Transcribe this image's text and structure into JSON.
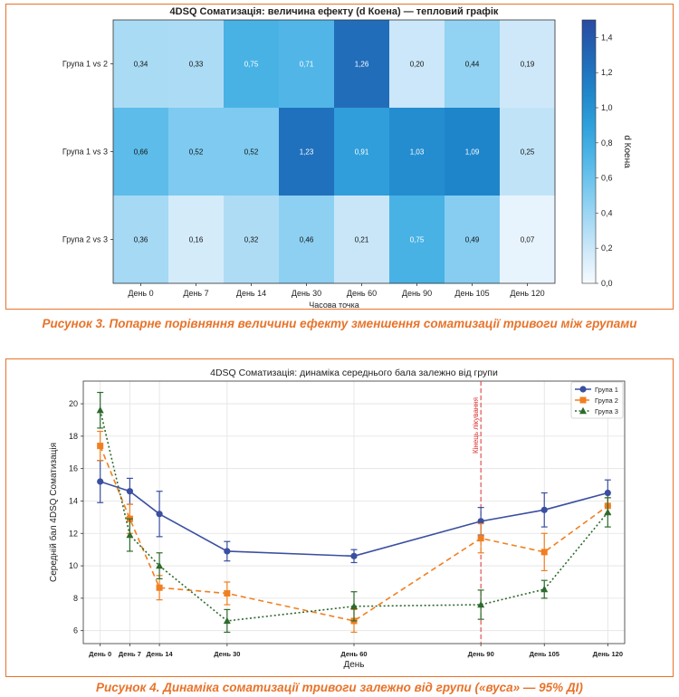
{
  "captions": {
    "fig3": "Рисунок 3. Попарне порівняння величини ефекту зменшення соматизації тривоги між групами",
    "fig4": "Рисунок 4. Динаміка соматизації тривоги залежно від групи («вуса» — 95% ДІ)"
  },
  "chart_data": [
    {
      "type": "heatmap",
      "title": "4DSQ Соматизація: величина ефекту (d Коена) — тепловий графік",
      "xlabel": "Часова точка",
      "ylabel": "",
      "colorbar_label": "d Коена",
      "colorbar_ticks": [
        "0,0",
        "0,2",
        "0,4",
        "0,6",
        "0,8",
        "1,0",
        "1,2",
        "1,4"
      ],
      "vmin": 0,
      "vmax": 1.5,
      "x_categories": [
        "День 0",
        "День 7",
        "День 14",
        "День 30",
        "День 60",
        "День 90",
        "День 105",
        "День 120"
      ],
      "y_categories": [
        "Група 1 vs 2",
        "Група 1 vs 3",
        "Група 2 vs 3"
      ],
      "values": [
        [
          0.34,
          0.33,
          0.75,
          0.71,
          1.26,
          0.2,
          0.44,
          0.19
        ],
        [
          0.66,
          0.52,
          0.52,
          1.23,
          0.91,
          1.03,
          1.09,
          0.25
        ],
        [
          0.36,
          0.16,
          0.32,
          0.46,
          0.21,
          0.75,
          0.49,
          0.07
        ]
      ],
      "value_labels": [
        [
          "0,34",
          "0,33",
          "0,75",
          "0,71",
          "1,26",
          "0,20",
          "0,44",
          "0,19"
        ],
        [
          "0,66",
          "0,52",
          "0,52",
          "1,23",
          "0,91",
          "1,03",
          "1,09",
          "0,25"
        ],
        [
          "0,36",
          "0,16",
          "0,32",
          "0,46",
          "0,21",
          "0,75",
          "0,49",
          "0,07"
        ]
      ]
    },
    {
      "type": "line",
      "title": "4DSQ Соматизація: динаміка середнього бала залежно від групи",
      "xlabel": "День",
      "ylabel": "Середній бал 4DSQ Соматизація",
      "x": [
        0,
        7,
        14,
        30,
        60,
        90,
        105,
        120
      ],
      "x_tick_labels": [
        "День 0",
        "День 7",
        "День 14",
        "День 30",
        "День 60",
        "День 90",
        "День 105",
        "День 120"
      ],
      "ylim": [
        5.2,
        21.4
      ],
      "y_ticks": [
        6,
        8,
        10,
        12,
        14,
        16,
        18,
        20
      ],
      "grid": true,
      "legend_position": "top-right",
      "annotation": {
        "x": 90,
        "label": "Кінець лікування",
        "color": "#e03030"
      },
      "series": [
        {
          "name": "Група 1",
          "color": "#3a4fa0",
          "marker": "circle",
          "line": "solid",
          "values": [
            15.2,
            14.6,
            13.2,
            10.9,
            10.6,
            12.75,
            13.45,
            14.5
          ],
          "ci_low": [
            13.9,
            13.8,
            11.8,
            10.3,
            10.2,
            11.9,
            12.4,
            13.7
          ],
          "ci_high": [
            16.5,
            15.4,
            14.6,
            11.5,
            11.0,
            13.6,
            14.5,
            15.3
          ]
        },
        {
          "name": "Група 2",
          "color": "#f07f20",
          "marker": "square",
          "line": "dashed",
          "values": [
            17.4,
            12.9,
            8.65,
            8.3,
            6.6,
            11.7,
            10.85,
            13.7
          ],
          "ci_low": [
            16.5,
            12.0,
            7.9,
            7.6,
            5.9,
            10.8,
            9.7,
            13.2
          ],
          "ci_high": [
            18.3,
            13.8,
            9.4,
            9.0,
            7.3,
            12.6,
            12.0,
            14.2
          ]
        },
        {
          "name": "Група 3",
          "color": "#2d6a2d",
          "marker": "triangle",
          "line": "dotted",
          "values": [
            19.6,
            11.9,
            10.0,
            6.6,
            7.5,
            7.6,
            8.55,
            13.3
          ],
          "ci_low": [
            18.5,
            10.9,
            9.2,
            5.9,
            6.6,
            6.7,
            8.0,
            12.4
          ],
          "ci_high": [
            20.7,
            12.9,
            10.8,
            7.3,
            8.4,
            8.5,
            9.1,
            14.2
          ]
        }
      ]
    }
  ]
}
